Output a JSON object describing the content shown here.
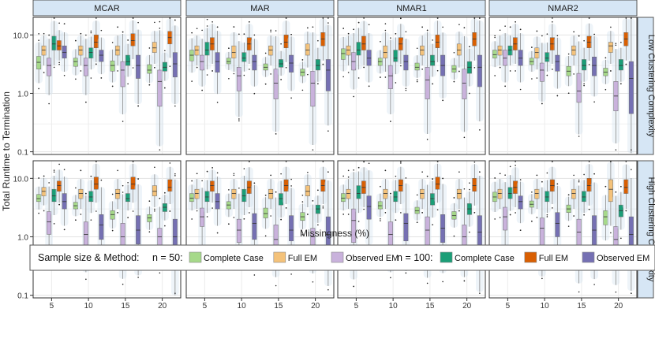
{
  "chart_data": {
    "type": "boxplot",
    "title": "",
    "xlabel": "Missingness (%)",
    "ylabel": "Total Runtime to Termination",
    "y_scale": "log10",
    "ylim": [
      0.09,
      20
    ],
    "y_ticks": [
      0.1,
      1.0,
      10.0
    ],
    "y_tick_labels": [
      "0.1",
      "1.0",
      "10.0"
    ],
    "x_categories": [
      "5",
      "10",
      "15",
      "20"
    ],
    "column_facets": [
      "MCAR",
      "MAR",
      "NMAR1",
      "NMAR2"
    ],
    "row_facets": [
      "Low Clustering Complexity",
      "High Clustering Complexity"
    ],
    "legend": {
      "title": "Sample size & Method:",
      "groups": [
        {
          "label": "n = 50:",
          "entries": [
            {
              "name": "Complete Case",
              "color": "#a6d98a"
            },
            {
              "name": "Full EM",
              "color": "#f4c27a"
            },
            {
              "name": "Observed EM",
              "color": "#c9b2dc"
            }
          ]
        },
        {
          "label": "n = 100:",
          "entries": [
            {
              "name": "Complete Case",
              "color": "#1b9e77"
            },
            {
              "name": "Full EM",
              "color": "#d95f02"
            },
            {
              "name": "Observed EM",
              "color": "#7570b3"
            }
          ]
        }
      ]
    },
    "series_order": [
      "Complete Case n=50",
      "Full EM n=50",
      "Observed EM n=50",
      "Complete Case n=100",
      "Full EM n=100",
      "Observed EM n=100"
    ],
    "panels": [
      {
        "column": "MCAR",
        "row": "Low Clustering Complexity",
        "boxes": [
          [
            [
              2.6,
              3.4,
              4.3
            ],
            [
              4.5,
              5.5,
              6.5
            ],
            [
              2.0,
              3.0,
              4.0
            ],
            [
              5.5,
              7.0,
              9.5
            ],
            [
              5.5,
              6.5,
              8.0
            ],
            [
              4.0,
              5.0,
              6.5
            ]
          ],
          [
            [
              2.9,
              3.5,
              4.0
            ],
            [
              4.5,
              5.5,
              6.5
            ],
            [
              2.0,
              3.0,
              4.0
            ],
            [
              4.0,
              5.0,
              6.0
            ],
            [
              6.0,
              7.5,
              10.0
            ],
            [
              3.5,
              4.5,
              5.5
            ]
          ],
          [
            [
              2.4,
              3.0,
              3.6
            ],
            [
              4.5,
              5.5,
              6.5
            ],
            [
              1.3,
              2.5,
              3.5
            ],
            [
              3.0,
              3.5,
              4.5
            ],
            [
              6.5,
              8.0,
              10.5
            ],
            [
              1.8,
              3.0,
              4.5
            ]
          ],
          [
            [
              2.2,
              2.5,
              3.1
            ],
            [
              5.0,
              6.0,
              7.5
            ],
            [
              0.6,
              1.6,
              2.5
            ],
            [
              2.4,
              2.8,
              3.4
            ],
            [
              7.0,
              9.0,
              11.5
            ],
            [
              1.9,
              3.2,
              5.0
            ]
          ]
        ]
      },
      {
        "column": "MAR",
        "row": "Low Clustering Complexity",
        "boxes": [
          [
            [
              3.6,
              4.5,
              5.5
            ],
            [
              4.5,
              5.5,
              6.5
            ],
            [
              2.5,
              3.5,
              4.5
            ],
            [
              4.5,
              5.5,
              7.5
            ],
            [
              5.5,
              7.0,
              9.0
            ],
            [
              2.3,
              3.5,
              5.0
            ]
          ],
          [
            [
              3.2,
              3.5,
              4.0
            ],
            [
              4.0,
              5.0,
              6.5
            ],
            [
              1.1,
              2.0,
              2.8
            ],
            [
              3.5,
              4.0,
              5.0
            ],
            [
              5.5,
              7.0,
              9.0
            ],
            [
              2.5,
              3.5,
              4.5
            ]
          ],
          [
            [
              2.5,
              2.8,
              3.2
            ],
            [
              4.5,
              5.5,
              6.5
            ],
            [
              0.8,
              1.5,
              2.6
            ],
            [
              2.8,
              3.2,
              3.8
            ],
            [
              6.0,
              7.5,
              10.0
            ],
            [
              2.3,
              3.3,
              4.5
            ]
          ],
          [
            [
              2.0,
              2.3,
              2.6
            ],
            [
              4.5,
              5.5,
              7.0
            ],
            [
              0.6,
              1.5,
              2.4
            ],
            [
              2.5,
              3.0,
              3.8
            ],
            [
              6.5,
              8.5,
              11.0
            ],
            [
              1.1,
              2.5,
              3.8
            ]
          ]
        ]
      },
      {
        "column": "NMAR1",
        "row": "Low Clustering Complexity",
        "boxes": [
          [
            [
              3.8,
              4.8,
              5.8
            ],
            [
              4.5,
              5.5,
              6.5
            ],
            [
              2.5,
              3.5,
              5.0
            ],
            [
              4.5,
              5.5,
              7.5
            ],
            [
              5.5,
              7.0,
              9.5
            ],
            [
              3.0,
              4.0,
              5.5
            ]
          ],
          [
            [
              3.0,
              3.5,
              4.0
            ],
            [
              4.0,
              5.0,
              6.5
            ],
            [
              1.2,
              2.0,
              3.0
            ],
            [
              3.5,
              4.0,
              5.5
            ],
            [
              5.5,
              7.0,
              9.0
            ],
            [
              2.5,
              3.5,
              4.5
            ]
          ],
          [
            [
              2.5,
              2.8,
              3.3
            ],
            [
              4.5,
              5.5,
              6.5
            ],
            [
              0.8,
              1.7,
              2.8
            ],
            [
              3.0,
              3.5,
              4.5
            ],
            [
              6.0,
              7.5,
              10.0
            ],
            [
              2.0,
              3.0,
              4.5
            ]
          ],
          [
            [
              2.3,
              2.6,
              3.0
            ],
            [
              4.5,
              5.5,
              7.0
            ],
            [
              0.8,
              1.5,
              2.6
            ],
            [
              2.2,
              2.8,
              3.5
            ],
            [
              6.5,
              8.5,
              11.0
            ],
            [
              1.3,
              2.8,
              4.5
            ]
          ]
        ]
      },
      {
        "column": "NMAR2",
        "row": "Low Clustering Complexity",
        "boxes": [
          [
            [
              4.0,
              4.6,
              5.5
            ],
            [
              4.5,
              5.5,
              6.5
            ],
            [
              3.0,
              4.0,
              5.5
            ],
            [
              4.5,
              5.5,
              6.5
            ],
            [
              5.5,
              7.0,
              9.0
            ],
            [
              3.0,
              4.0,
              5.5
            ]
          ],
          [
            [
              3.1,
              3.5,
              4.0
            ],
            [
              4.0,
              5.0,
              6.0
            ],
            [
              1.6,
              2.5,
              3.3
            ],
            [
              3.5,
              4.0,
              5.0
            ],
            [
              5.5,
              7.0,
              9.0
            ],
            [
              2.4,
              3.5,
              4.5
            ]
          ],
          [
            [
              2.0,
              2.4,
              2.9
            ],
            [
              4.5,
              5.5,
              6.5
            ],
            [
              0.7,
              1.1,
              2.2
            ],
            [
              2.5,
              3.0,
              3.8
            ],
            [
              6.0,
              7.5,
              9.5
            ],
            [
              2.0,
              3.0,
              4.2
            ]
          ],
          [
            [
              2.0,
              2.3,
              2.7
            ],
            [
              5.0,
              6.5,
              7.5
            ],
            [
              0.5,
              0.9,
              1.6
            ],
            [
              2.5,
              3.0,
              3.8
            ],
            [
              6.5,
              8.5,
              11.0
            ],
            [
              0.45,
              1.8,
              3.5
            ]
          ]
        ]
      },
      {
        "column": "MCAR",
        "row": "High Clustering Complexity",
        "boxes": [
          [
            [
              4.0,
              4.5,
              5.3
            ],
            [
              5.0,
              6.0,
              7.0
            ],
            [
              1.1,
              1.8,
              2.7
            ],
            [
              4.0,
              5.0,
              6.5
            ],
            [
              6.0,
              7.5,
              9.0
            ],
            [
              3.0,
              4.0,
              5.5
            ]
          ],
          [
            [
              3.0,
              3.4,
              3.9
            ],
            [
              4.5,
              5.5,
              6.5
            ],
            [
              0.7,
              1.1,
              1.8
            ],
            [
              4.0,
              4.8,
              6.0
            ],
            [
              6.5,
              8.0,
              10.5
            ],
            [
              0.9,
              1.6,
              2.4
            ]
          ],
          [
            [
              2.0,
              2.4,
              2.8
            ],
            [
              4.5,
              5.5,
              6.5
            ],
            [
              0.6,
              1.0,
              1.7
            ],
            [
              4.0,
              4.5,
              5.5
            ],
            [
              6.5,
              8.0,
              10.5
            ],
            [
              0.75,
              1.3,
              2.3
            ]
          ],
          [
            [
              1.8,
              2.1,
              2.4
            ],
            [
              5.0,
              6.0,
              7.5
            ],
            [
              0.65,
              1.0,
              1.4
            ],
            [
              2.7,
              3.2,
              3.7
            ],
            [
              6.0,
              7.0,
              9.5
            ],
            [
              0.48,
              1.0,
              2.0
            ]
          ]
        ]
      },
      {
        "column": "MAR",
        "row": "High Clustering Complexity",
        "boxes": [
          [
            [
              4.0,
              4.6,
              5.5
            ],
            [
              4.5,
              5.5,
              6.5
            ],
            [
              1.5,
              2.2,
              3.1
            ],
            [
              4.0,
              4.8,
              6.0
            ],
            [
              6.0,
              7.5,
              9.0
            ],
            [
              3.0,
              4.0,
              5.5
            ]
          ],
          [
            [
              3.0,
              3.5,
              4.0
            ],
            [
              4.5,
              5.5,
              6.5
            ],
            [
              0.8,
              1.3,
              2.0
            ],
            [
              4.0,
              5.0,
              6.5
            ],
            [
              5.5,
              7.0,
              9.0
            ],
            [
              0.9,
              1.7,
              2.5
            ]
          ],
          [
            [
              2.1,
              2.5,
              3.1
            ],
            [
              4.5,
              5.5,
              6.5
            ],
            [
              0.6,
              0.9,
              1.6
            ],
            [
              3.5,
              4.5,
              5.5
            ],
            [
              6.0,
              7.5,
              9.5
            ],
            [
              0.85,
              1.3,
              2.3
            ]
          ],
          [
            [
              1.9,
              2.2,
              2.6
            ],
            [
              5.0,
              6.0,
              7.5
            ],
            [
              0.6,
              1.0,
              1.4
            ],
            [
              2.5,
              3.0,
              3.5
            ],
            [
              6.0,
              7.5,
              9.5
            ],
            [
              0.6,
              1.1,
              2.2
            ]
          ]
        ]
      },
      {
        "column": "NMAR1",
        "row": "High Clustering Complexity",
        "boxes": [
          [
            [
              4.0,
              4.6,
              5.5
            ],
            [
              4.5,
              5.5,
              6.5
            ],
            [
              0.8,
              1.9,
              3.0
            ],
            [
              4.5,
              5.5,
              7.5
            ],
            [
              5.5,
              7.0,
              9.0
            ],
            [
              2.0,
              3.3,
              5.0
            ]
          ],
          [
            [
              3.0,
              3.4,
              4.0
            ],
            [
              4.5,
              5.5,
              6.5
            ],
            [
              0.7,
              1.1,
              1.8
            ],
            [
              4.0,
              4.8,
              6.0
            ],
            [
              6.0,
              7.5,
              9.5
            ],
            [
              0.85,
              1.7,
              2.5
            ]
          ],
          [
            [
              2.5,
              2.8,
              3.2
            ],
            [
              4.5,
              5.5,
              6.5
            ],
            [
              0.7,
              1.3,
              2.2
            ],
            [
              3.5,
              4.5,
              5.5
            ],
            [
              6.5,
              8.0,
              10.5
            ],
            [
              0.8,
              1.4,
              2.4
            ]
          ],
          [
            [
              2.0,
              2.3,
              2.7
            ],
            [
              4.5,
              5.5,
              6.5
            ],
            [
              0.6,
              1.0,
              1.6
            ],
            [
              2.4,
              3.0,
              3.7
            ],
            [
              6.0,
              7.5,
              10.0
            ],
            [
              0.55,
              1.2,
              2.3
            ]
          ]
        ]
      },
      {
        "column": "NMAR2",
        "row": "High Clustering Complexity",
        "boxes": [
          [
            [
              4.0,
              4.8,
              5.8
            ],
            [
              4.5,
              5.5,
              6.5
            ],
            [
              1.3,
              2.2,
              3.2
            ],
            [
              4.5,
              5.5,
              7.0
            ],
            [
              5.5,
              7.0,
              9.0
            ],
            [
              3.0,
              4.0,
              5.0
            ]
          ],
          [
            [
              3.2,
              3.6,
              4.1
            ],
            [
              4.5,
              5.5,
              6.5
            ],
            [
              0.7,
              1.4,
              2.1
            ],
            [
              4.0,
              4.8,
              6.0
            ],
            [
              6.0,
              7.5,
              9.5
            ],
            [
              1.0,
              1.7,
              2.6
            ]
          ],
          [
            [
              2.6,
              3.0,
              3.5
            ],
            [
              4.5,
              5.5,
              6.5
            ],
            [
              0.6,
              1.2,
              2.0
            ],
            [
              4.0,
              4.8,
              6.0
            ],
            [
              6.0,
              7.5,
              10.0
            ],
            [
              0.7,
              1.3,
              2.3
            ]
          ],
          [
            [
              1.6,
              2.2,
              2.8
            ],
            [
              4.0,
              6.5,
              9.5
            ],
            [
              0.5,
              0.9,
              1.5
            ],
            [
              2.2,
              2.8,
              3.5
            ],
            [
              5.5,
              7.0,
              9.5
            ],
            [
              0.55,
              1.1,
              2.2
            ]
          ]
        ]
      }
    ]
  }
}
